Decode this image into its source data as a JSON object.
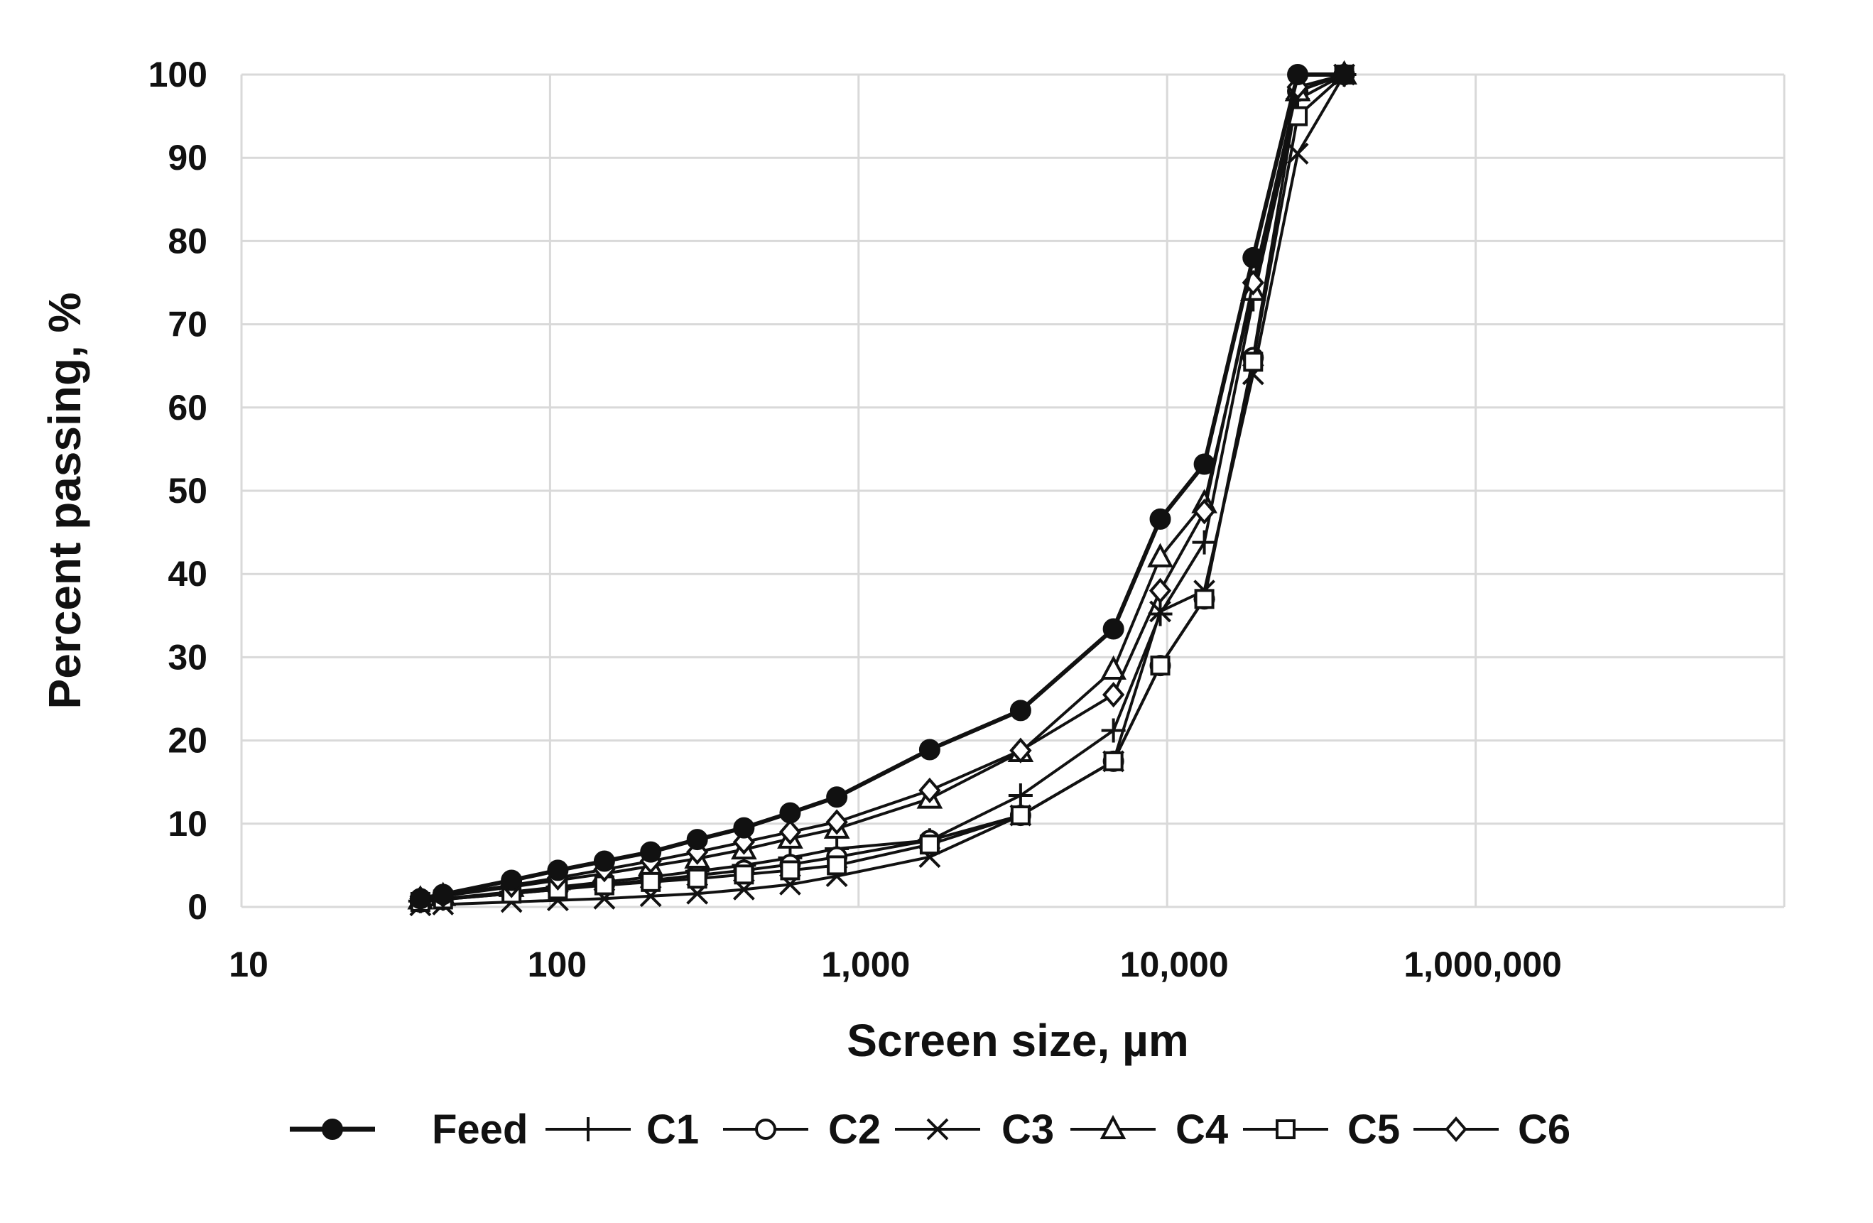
{
  "chart_data": {
    "type": "line",
    "xlabel": "Screen size, µm",
    "ylabel": "Percent passing, %",
    "x_scale": "log",
    "xlim": [
      10,
      1000000
    ],
    "ylim": [
      0,
      100
    ],
    "x_tick_labels": [
      "10",
      "100",
      "1,000",
      "10,000",
      "1,000,000"
    ],
    "y_tick_labels": [
      "0",
      "10",
      "20",
      "30",
      "40",
      "50",
      "60",
      "70",
      "80",
      "90",
      "100"
    ],
    "grid": true,
    "legend_position": "bottom",
    "colors": {
      "series": "#111111",
      "grid": "#d9d9d9",
      "text": "#111111"
    },
    "x": [
      38,
      45,
      75,
      106,
      150,
      212,
      300,
      425,
      600,
      850,
      1700,
      3350,
      6700,
      9500,
      13200,
      19000,
      26500,
      37500
    ],
    "series": [
      {
        "name": "Feed",
        "marker": "filled-circle",
        "values": [
          1.0,
          1.5,
          3.2,
          4.4,
          5.5,
          6.6,
          8.1,
          9.5,
          11.3,
          13.2,
          18.9,
          23.6,
          33.4,
          46.6,
          53.2,
          78.0,
          100,
          100
        ]
      },
      {
        "name": "C1",
        "marker": "plus",
        "values": [
          0.7,
          1.0,
          1.8,
          2.4,
          3.0,
          3.6,
          4.3,
          5.0,
          5.9,
          7.0,
          8.0,
          13.4,
          21.2,
          35.2,
          43.8,
          73.0,
          97.0,
          100
        ]
      },
      {
        "name": "C2",
        "marker": "open-circle",
        "values": [
          0.6,
          0.9,
          1.6,
          2.1,
          2.7,
          3.2,
          3.8,
          4.4,
          5.1,
          6.0,
          8.0,
          11.0,
          17.5,
          29.0,
          37.0,
          66.0,
          98.0,
          100
        ]
      },
      {
        "name": "C3",
        "marker": "x",
        "values": [
          0.2,
          0.3,
          0.6,
          0.8,
          1.0,
          1.3,
          1.6,
          2.1,
          2.7,
          3.7,
          6.0,
          11.0,
          17.5,
          35.5,
          38.0,
          64.0,
          90.5,
          100
        ]
      },
      {
        "name": "C4",
        "marker": "open-triangle",
        "values": [
          0.9,
          1.3,
          2.4,
          3.2,
          4.0,
          4.9,
          5.8,
          6.9,
          8.2,
          9.4,
          13.0,
          18.6,
          28.5,
          42.0,
          48.5,
          74.0,
          98.0,
          100
        ]
      },
      {
        "name": "C5",
        "marker": "open-square",
        "values": [
          0.6,
          0.9,
          1.6,
          2.1,
          2.6,
          3.0,
          3.4,
          3.9,
          4.4,
          5.0,
          7.5,
          11.0,
          17.5,
          29.0,
          37.0,
          65.5,
          95.0,
          100
        ]
      },
      {
        "name": "C6",
        "marker": "open-diamond",
        "values": [
          1.0,
          1.4,
          2.6,
          3.5,
          4.5,
          5.5,
          6.6,
          7.8,
          9.0,
          10.2,
          14.0,
          18.8,
          25.5,
          38.0,
          47.5,
          75.0,
          98.5,
          100
        ]
      }
    ]
  }
}
